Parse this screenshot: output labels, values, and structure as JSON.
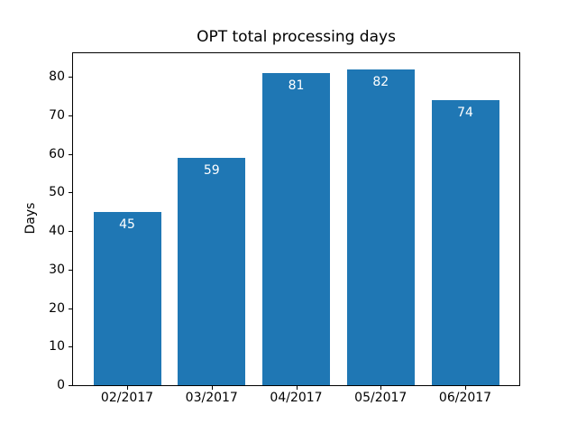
{
  "chart_data": {
    "type": "bar",
    "title": "OPT total processing days",
    "xlabel": "",
    "ylabel": "Days",
    "categories": [
      "02/2017",
      "03/2017",
      "04/2017",
      "05/2017",
      "06/2017"
    ],
    "values": [
      45,
      59,
      81,
      82,
      74
    ],
    "bar_labels": [
      "45",
      "59",
      "81",
      "82",
      "74"
    ],
    "yticks": [
      0,
      10,
      20,
      30,
      40,
      50,
      60,
      70,
      80
    ],
    "ylim": [
      0,
      86.1
    ],
    "grid": false,
    "legend": false,
    "bar_color": "#1f77b4",
    "bar_label_color": "#ffffff",
    "text_color": "#000000",
    "background_color": "#ffffff",
    "spine_color": "#000000"
  }
}
